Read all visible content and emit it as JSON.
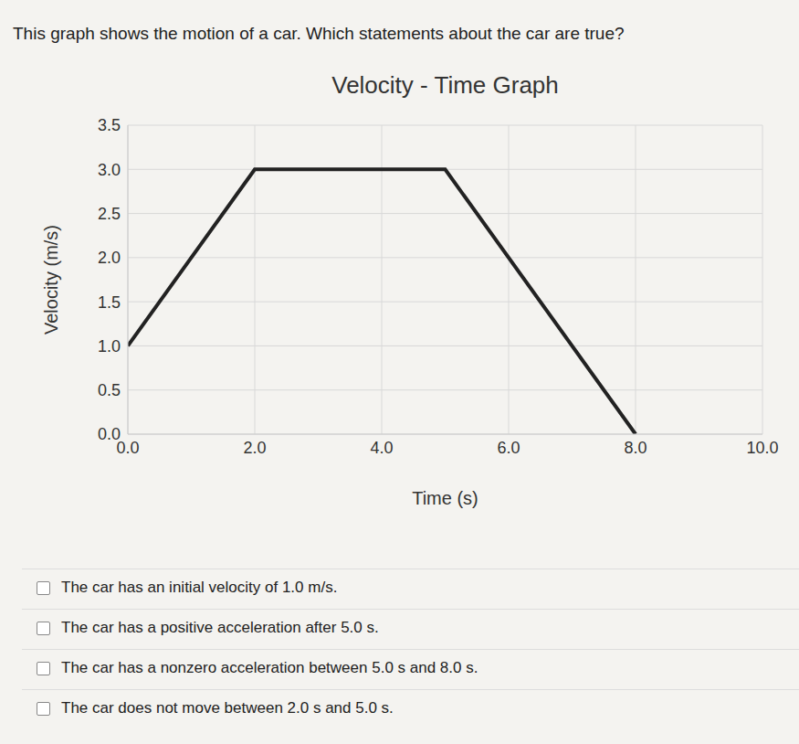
{
  "question": "This graph shows the motion of a car. Which statements about the car are true?",
  "options": [
    "The car has an initial velocity of 1.0 m/s.",
    "The car has a positive acceleration after 5.0 s.",
    "The car has a nonzero acceleration between 5.0 s and 8.0 s.",
    "The car does not move between 2.0 s and 5.0 s."
  ],
  "chart_data": {
    "type": "line",
    "title": "Velocity - Time Graph",
    "x_label": "Time (s)",
    "y_label": "Velocity (m/s)",
    "x": [
      0.0,
      2.0,
      5.0,
      8.0
    ],
    "values": [
      1.0,
      3.0,
      3.0,
      0.0
    ],
    "color": "#222222",
    "xlim": [
      0,
      10
    ],
    "xticks": [
      {
        "value": 0,
        "label": "0.0"
      },
      {
        "value": 2,
        "label": "2.0"
      },
      {
        "value": 4,
        "label": "4.0"
      },
      {
        "value": 6,
        "label": "6.0"
      },
      {
        "value": 8,
        "label": "8.0"
      },
      {
        "value": 10,
        "label": "10.0"
      }
    ],
    "ylim": [
      0,
      3.5
    ],
    "yticks": [
      {
        "value": 0,
        "label": "0.0"
      },
      0.5,
      {
        "value": 1,
        "label": "1.0"
      },
      1.5,
      {
        "value": 2,
        "label": "2.0"
      },
      2.5,
      {
        "value": 3,
        "label": "3.0"
      },
      3.5
    ],
    "grid": true
  }
}
